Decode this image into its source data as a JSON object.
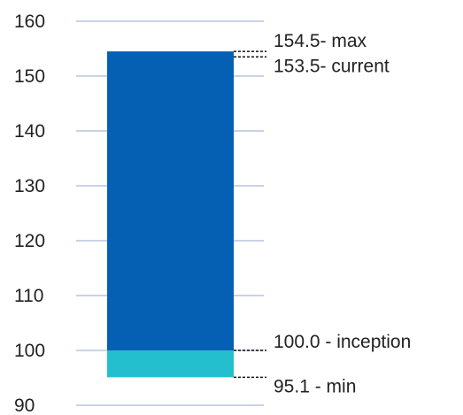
{
  "chart_data": {
    "type": "bar",
    "title": "",
    "xlabel": "",
    "ylabel": "",
    "ylim": [
      90,
      160
    ],
    "yticks": [
      90,
      100,
      110,
      120,
      130,
      140,
      150,
      160
    ],
    "grid": true,
    "segments": [
      {
        "from": 95.1,
        "to": 100.0,
        "color": "#24bfcf"
      },
      {
        "from": 100.0,
        "to": 154.5,
        "color": "#0560b4"
      }
    ],
    "annotations": [
      {
        "value": 154.5,
        "text": "154.5- max"
      },
      {
        "value": 153.5,
        "text": "153.5- current"
      },
      {
        "value": 100.0,
        "text": "100.0 - inception"
      },
      {
        "value": 95.1,
        "text": "95.1 - min"
      }
    ],
    "colors": {
      "grid": "#c9d2e6",
      "leader": "#111111"
    }
  }
}
